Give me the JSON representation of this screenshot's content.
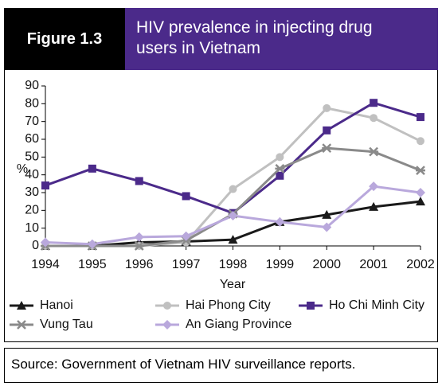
{
  "chart_data": {
    "type": "line",
    "label": "Figure 1.3",
    "title": "HIV prevalence in injecting drug users in Vietnam",
    "y_label": "%",
    "x_label": "Year",
    "source": "Source: Government of Vietnam HIV surveillance reports.",
    "categories": [
      "1994",
      "1995",
      "1996",
      "1997",
      "1998",
      "1999",
      "2000",
      "2001",
      "2002"
    ],
    "ylim": [
      0,
      90
    ],
    "yticks": [
      0,
      10,
      20,
      30,
      40,
      50,
      60,
      70,
      80,
      90
    ],
    "series": [
      {
        "name": "Hanoi",
        "color": "#1a1a1a",
        "marker": "triangle",
        "values": [
          0,
          0,
          2,
          2.5,
          3.5,
          13.5,
          17.5,
          22,
          25
        ]
      },
      {
        "name": "Hai Phong City",
        "color": "#c0c0c0",
        "marker": "circle",
        "values": [
          0,
          0,
          0,
          2,
          32,
          50,
          77.5,
          72,
          59
        ]
      },
      {
        "name": "Ho Chi Minh City",
        "color": "#4b2a8a",
        "marker": "square",
        "values": [
          34,
          43.5,
          36.5,
          28,
          18.5,
          39.5,
          65,
          80.5,
          72.5
        ]
      },
      {
        "name": "Vung Tau",
        "color": "#8a8a8a",
        "marker": "star",
        "values": [
          0,
          0,
          0,
          3,
          18,
          43.5,
          55,
          53,
          42.5
        ]
      },
      {
        "name": "An Giang Province",
        "color": "#b9a8dc",
        "marker": "diamond",
        "values": [
          2,
          1,
          5,
          5.5,
          17,
          13.5,
          10.5,
          33.5,
          30
        ]
      }
    ]
  }
}
